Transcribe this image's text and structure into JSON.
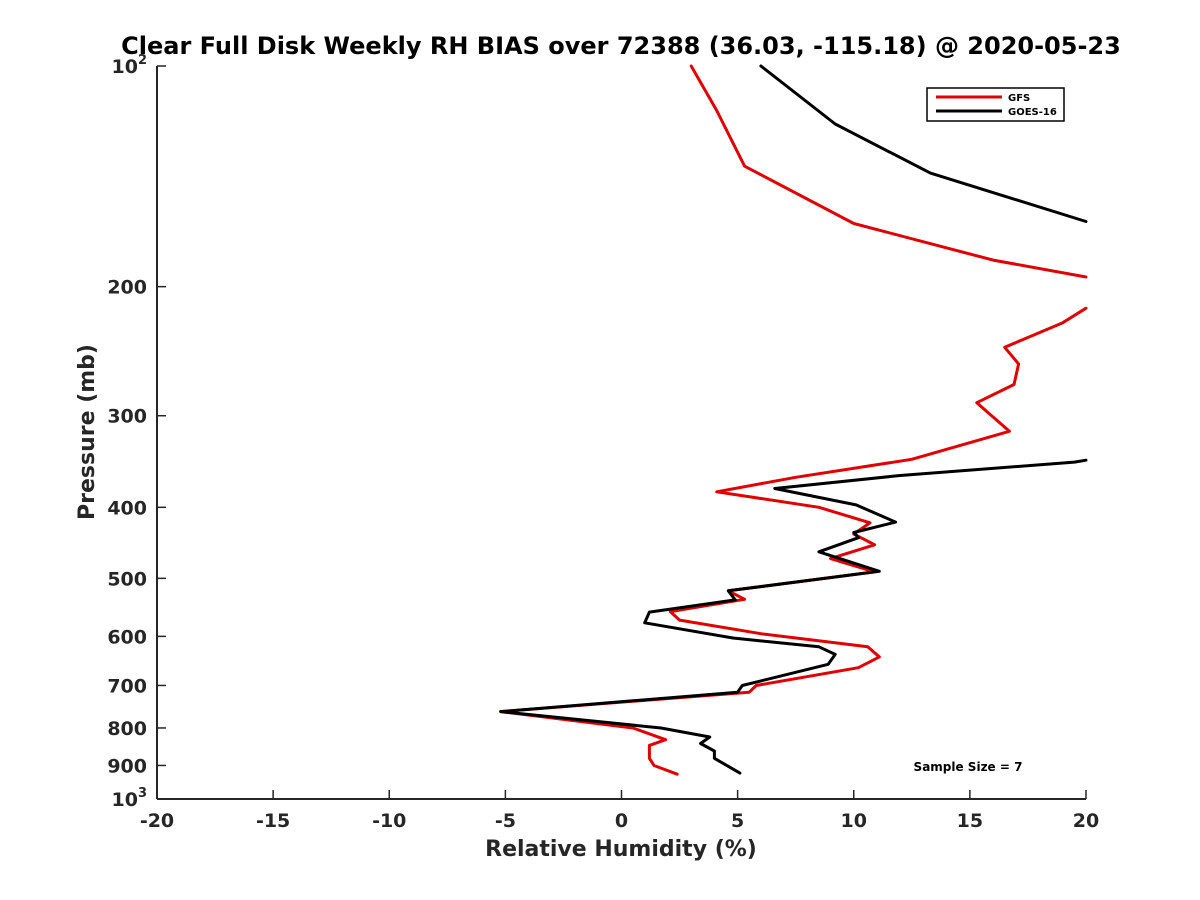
{
  "chart_data": {
    "type": "line",
    "title": "Clear Full Disk Weekly RH BIAS over 72388 (36.03, -115.18) @ 2020-05-23",
    "xlabel": "Relative Humidity (%)",
    "ylabel": "Pressure (mb)",
    "xlim": [
      -20,
      20
    ],
    "ylim": [
      100,
      1000
    ],
    "y_scale": "log",
    "y_reversed": true,
    "x_ticks": [
      {
        "value": -20,
        "label": "-20"
      },
      {
        "value": -15,
        "label": "-15"
      },
      {
        "value": -10,
        "label": "-10"
      },
      {
        "value": -5,
        "label": "-5"
      },
      {
        "value": 0,
        "label": "0"
      },
      {
        "value": 5,
        "label": "5"
      },
      {
        "value": 10,
        "label": "10"
      },
      {
        "value": 15,
        "label": "15"
      },
      {
        "value": 20,
        "label": "20"
      }
    ],
    "y_ticks": [
      {
        "value": 100,
        "label": "10",
        "sup": "2"
      },
      {
        "value": 200,
        "label": "200",
        "sup": ""
      },
      {
        "value": 300,
        "label": "300",
        "sup": ""
      },
      {
        "value": 400,
        "label": "400",
        "sup": ""
      },
      {
        "value": 500,
        "label": "500",
        "sup": ""
      },
      {
        "value": 600,
        "label": "600",
        "sup": ""
      },
      {
        "value": 700,
        "label": "700",
        "sup": ""
      },
      {
        "value": 800,
        "label": "800",
        "sup": ""
      },
      {
        "value": 900,
        "label": "900",
        "sup": ""
      },
      {
        "value": 1000,
        "label": "10",
        "sup": "3"
      }
    ],
    "grid": false,
    "legend_position": "top-right",
    "series": [
      {
        "name": "GFS",
        "color": "#e00000",
        "points": [
          [
            3.0,
            100
          ],
          [
            4.1,
            115
          ],
          [
            5.3,
            137
          ],
          [
            10.0,
            164
          ],
          [
            16.0,
            184
          ],
          [
            20.0,
            194
          ],
          [
            null,
            null
          ],
          [
            20.0,
            214
          ],
          [
            19.0,
            224
          ],
          [
            16.5,
            242
          ],
          [
            17.1,
            255
          ],
          [
            16.9,
            272
          ],
          [
            15.3,
            288
          ],
          [
            16.7,
            315
          ],
          [
            12.5,
            344
          ],
          [
            7.5,
            364
          ],
          [
            4.1,
            381
          ],
          [
            8.5,
            400
          ],
          [
            10.7,
            420
          ],
          [
            10.0,
            435
          ],
          [
            10.9,
            450
          ],
          [
            9.0,
            470
          ],
          [
            10.9,
            490
          ],
          [
            4.6,
            520
          ],
          [
            5.3,
            534
          ],
          [
            2.1,
            555
          ],
          [
            2.5,
            570
          ],
          [
            6.0,
            595
          ],
          [
            10.6,
            620
          ],
          [
            11.1,
            640
          ],
          [
            10.2,
            662
          ],
          [
            5.8,
            700
          ],
          [
            5.5,
            715
          ],
          [
            -5.2,
            760
          ],
          [
            0.5,
            800
          ],
          [
            1.9,
            830
          ],
          [
            1.2,
            845
          ],
          [
            1.2,
            880
          ],
          [
            1.4,
            900
          ],
          [
            2.4,
            925
          ]
        ]
      },
      {
        "name": "GOES-16",
        "color": "#000000",
        "points": [
          [
            6.0,
            100
          ],
          [
            9.2,
            120
          ],
          [
            13.3,
            140
          ],
          [
            20.0,
            163
          ],
          [
            null,
            null
          ],
          [
            20.0,
            345
          ],
          [
            19.5,
            347
          ],
          [
            12.0,
            362
          ],
          [
            6.6,
            377
          ],
          [
            10.1,
            397
          ],
          [
            11.8,
            419
          ],
          [
            10.0,
            433
          ],
          [
            10.2,
            440
          ],
          [
            8.5,
            460
          ],
          [
            11.1,
            489
          ],
          [
            4.6,
            520
          ],
          [
            4.9,
            535
          ],
          [
            1.2,
            556
          ],
          [
            1.0,
            575
          ],
          [
            4.8,
            603
          ],
          [
            8.5,
            620
          ],
          [
            9.2,
            635
          ],
          [
            8.9,
            655
          ],
          [
            6.0,
            690
          ],
          [
            5.2,
            700
          ],
          [
            5.0,
            715
          ],
          [
            -5.2,
            760
          ],
          [
            1.7,
            800
          ],
          [
            3.8,
            823
          ],
          [
            3.4,
            840
          ],
          [
            4.0,
            860
          ],
          [
            4.0,
            880
          ],
          [
            5.1,
            922
          ]
        ]
      }
    ],
    "annotation": "Sample Size = 7"
  }
}
